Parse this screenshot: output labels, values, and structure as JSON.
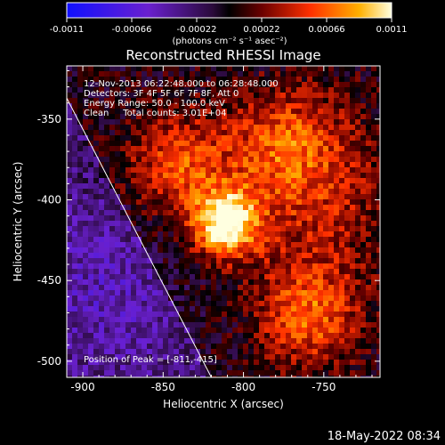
{
  "chart_data": {
    "type": "heatmap",
    "title": "Reconstructed RHESSI Image",
    "xlabel": "Heliocentric X (arcsec)",
    "ylabel": "Heliocentric Y (arcsec)",
    "xlim": [
      -910,
      -715
    ],
    "ylim": [
      -510,
      -317
    ],
    "x_ticks": [
      -900,
      -850,
      -800,
      -750
    ],
    "y_ticks": [
      -350,
      -400,
      -450,
      -500
    ],
    "colorbar": {
      "range": [
        -0.0011,
        0.0011
      ],
      "tick_values": [
        -0.0011,
        -0.00066,
        -0.00022,
        0.00022,
        0.00066,
        0.0011
      ],
      "tick_labels": [
        "-0.0011",
        "-0.00066",
        "-0.00022",
        "0.00022",
        "0.00066",
        "0.0011"
      ],
      "unit_label": "(photons cm⁻² s⁻¹ asec⁻²)"
    },
    "annotations": [
      "12-Nov-2013 06:22:48.000 to 06:28:48.000",
      "Detectors: 3F 4F 5F 6F 7F 8F, Att 0",
      "Energy Range: 50.0 - 100.0 keV",
      "Clean     Total counts: 3.01E+04"
    ],
    "peak_label": "Position of Peak = [-811,-415]",
    "peaks": [
      {
        "x": -811,
        "y": -415,
        "value": 0.0011
      },
      {
        "x": -760,
        "y": -472,
        "value": 0.00062
      },
      {
        "x": -842,
        "y": -378,
        "value": 0.0005
      },
      {
        "x": -773,
        "y": -363,
        "value": 0.0004
      }
    ],
    "limb_line": [
      [
        -910,
        -337
      ],
      [
        -820,
        -510
      ]
    ],
    "footer": "18-May-2022 08:34"
  }
}
